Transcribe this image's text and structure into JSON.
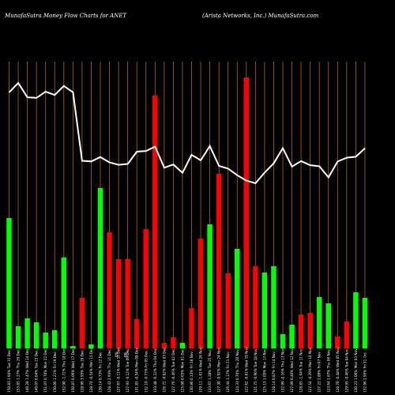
{
  "chart_data": {
    "type": "bar",
    "title_left": "MunafaSutra  Money Flow  Charts for ANET",
    "title_right": "(Arista  Networks,  Inc.) MunafaSutra.com",
    "colors": {
      "background": "#000000",
      "up": "#00ff00",
      "down": "#ff0000",
      "grid": "#b8660b",
      "line": "#ffffff"
    },
    "grid": true,
    "categories": [
      "150.83 1.94% Tue 31 Dec",
      "153.85 1.27% Thu 26 Dec",
      "149.28 1.47% Wed 24 Dec",
      "149.07 0.04% Tue 23 Dec",
      "151.07 0.70% Mon 22 Dec",
      "150.00 1.21% Fri 19 Dec",
      "152.90 -1.72% Thu 18 Dec",
      "150.87 0.06% Wed 17 Dec",
      "128.96 3.95% Tue 16 Dec",
      "128.74 -0.54% Mon 15 Dec",
      "130.14 0.73% Fri 12 Dec",
      "128.43 2.93% Thu 11 Dec",
      "127.67 -0.11% Wed 10 Dec",
      "127.93 -0.12% Tue 09 Dec",
      "131.85 -0.54% Mon 08 Dec",
      "132.10 -0.73% Fri 05 Dec",
      "133.48 -0.22% Thu 04 Dec",
      "126.72 -0.82% Wed 03 Dec",
      "127.76 -0.46% Tue 02 Dec",
      "125.08 0.65% Mon 01 Dec",
      "130.86 0.13% Fri 28 Nov",
      "129.11 -1.61% Wed 26 Nov",
      "133.67 1.28% Tue 25 Nov",
      "127.30 -0.92% Mon 24 Nov",
      "126.44 1.17% Fri 21 Nov",
      "124.33 0.70% Thu 20 Nov",
      "122.62 -0.81% Wed 19 Nov",
      "121.75 -0.90% Tue 18 Nov",
      "125.15 1.05% Mon 17 Nov",
      "128.14 0.87% Fri 14 Nov",
      "132.99 -0.16% Thu 13 Nov",
      "127.09 0.40% Wed 12 Nov",
      "128.85 -1.04% Tue 11 Nov",
      "127.54 -0.29% Mon 10 Nov",
      "127.22 2.89% Fri 07 Nov",
      "123.64 1.67% Thu 06 Nov",
      "128.70 -0.48% Wed 05 Nov",
      "129.95 -0.46% Tue 04 Nov",
      "130.23 1.06% Mon 03 Nov",
      "132.96 1.95% Fri 31 Oct"
    ],
    "flow_values": [
      165,
      28,
      38,
      33,
      20,
      23,
      115,
      3,
      64,
      5,
      203,
      147,
      113,
      113,
      37,
      151,
      320,
      7,
      14,
      7,
      51,
      139,
      157,
      221,
      95,
      126,
      343,
      104,
      96,
      104,
      18,
      30,
      43,
      45,
      65,
      57,
      15,
      34,
      71,
      64
    ],
    "flow_direction": [
      "up",
      "up",
      "up",
      "up",
      "up",
      "up",
      "up",
      "up",
      "down",
      "up",
      "up",
      "down",
      "down",
      "down",
      "down",
      "down",
      "down",
      "down",
      "down",
      "up",
      "down",
      "down",
      "up",
      "down",
      "down",
      "up",
      "down",
      "down",
      "up",
      "up",
      "up",
      "up",
      "down",
      "down",
      "up",
      "up",
      "down",
      "down",
      "up",
      "up"
    ],
    "price_line": [
      150.83,
      153.85,
      149.28,
      149.07,
      151.07,
      150.0,
      152.9,
      150.87,
      128.96,
      128.74,
      130.14,
      128.43,
      127.67,
      127.93,
      131.85,
      132.1,
      133.48,
      126.72,
      127.76,
      125.08,
      130.86,
      129.11,
      133.67,
      127.3,
      126.44,
      124.33,
      122.62,
      121.75,
      125.15,
      128.14,
      132.99,
      127.09,
      128.85,
      127.54,
      127.22,
      123.64,
      128.7,
      129.95,
      130.23,
      132.96
    ],
    "note_ordering": "rightmost bar is oldest",
    "mid_marks": [
      "0%",
      "0%"
    ]
  }
}
